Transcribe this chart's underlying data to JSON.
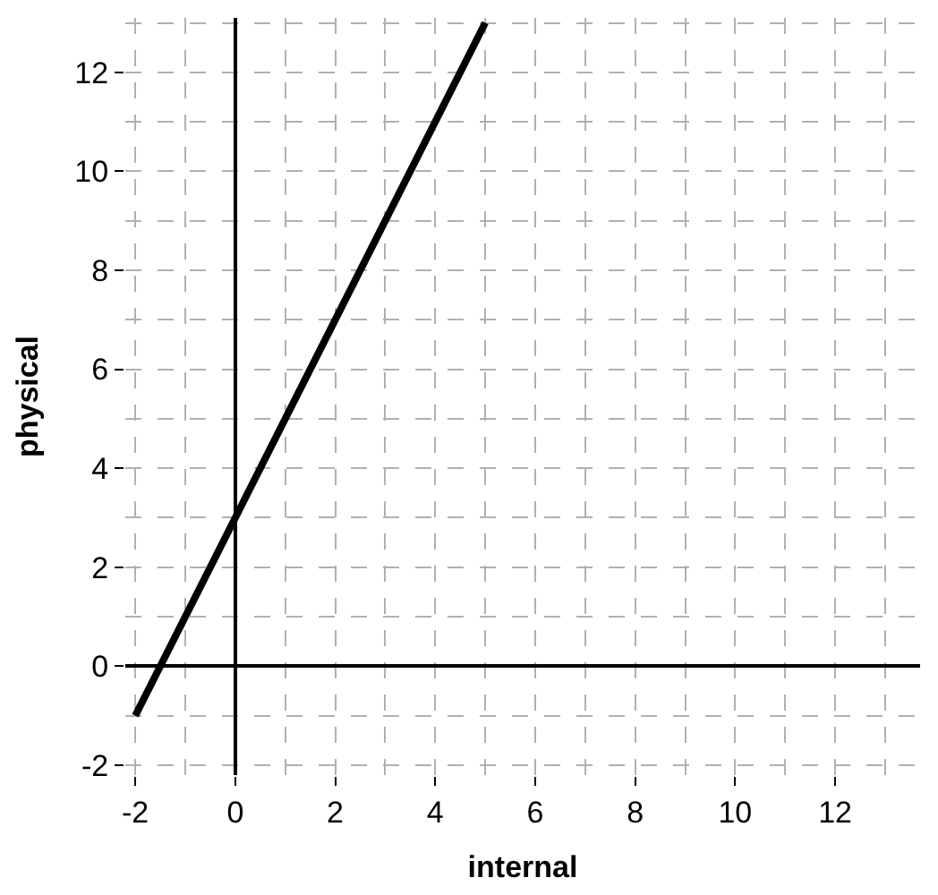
{
  "chart_data": {
    "type": "line",
    "xlabel": "internal",
    "ylabel": "physical",
    "x": [
      -2,
      5
    ],
    "series": [
      {
        "color": "#000000",
        "values": [
          -1,
          13
        ]
      }
    ],
    "xlim": [
      -2.2,
      13.7
    ],
    "ylim": [
      -2.2,
      13.1
    ],
    "xticks": [
      -2,
      0,
      2,
      4,
      6,
      8,
      10,
      12
    ],
    "yticks": [
      -2,
      0,
      2,
      4,
      6,
      8,
      10,
      12
    ],
    "grid": true,
    "line_style": "solid"
  }
}
